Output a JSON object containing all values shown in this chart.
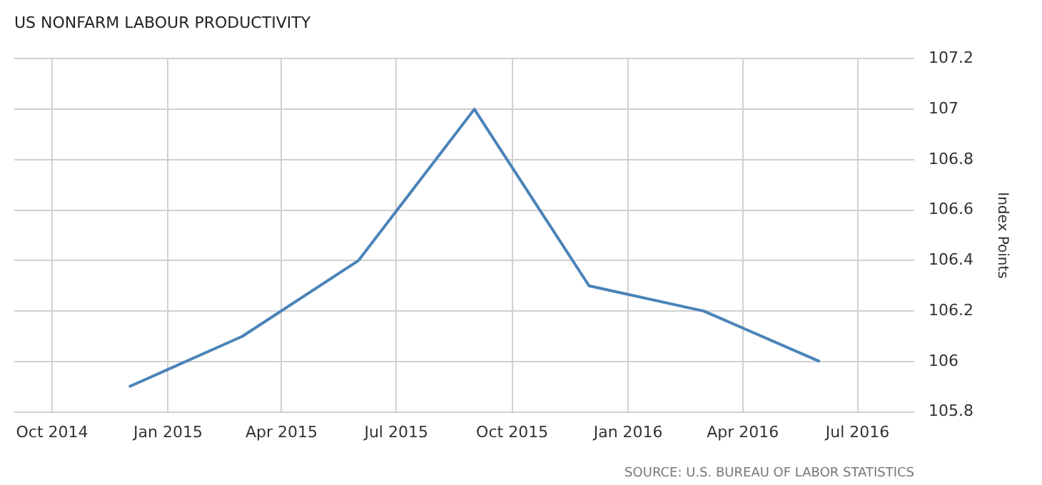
{
  "chart_data": {
    "type": "line",
    "title": "US NONFARM LABOUR PRODUCTIVITY",
    "ylabel": "Index Points",
    "x": [
      "2014-12",
      "2015-03",
      "2015-06",
      "2015-09",
      "2015-12",
      "2016-03",
      "2016-06"
    ],
    "series": [
      {
        "color": "#4a83b9",
        "values": [
          105.9,
          106.1,
          106.4,
          107.0,
          106.3,
          106.2,
          106.0
        ]
      }
    ],
    "xlim": [
      "2014-09-01",
      "2016-08-15"
    ],
    "xticks": [
      {
        "value": "2014-10",
        "label": "Oct 2014"
      },
      {
        "value": "2015-01",
        "label": "Jan 2015"
      },
      {
        "value": "2015-04",
        "label": "Apr 2015"
      },
      {
        "value": "2015-07",
        "label": "Jul 2015"
      },
      {
        "value": "2015-10",
        "label": "Oct 2015"
      },
      {
        "value": "2016-01",
        "label": "Jan 2016"
      },
      {
        "value": "2016-04",
        "label": "Apr 2016"
      },
      {
        "value": "2016-07",
        "label": "Jul 2016"
      }
    ],
    "ylim": [
      105.8,
      107.2
    ],
    "yticks": [
      105.8,
      106,
      106.2,
      106.4,
      106.6,
      106.8,
      107,
      107.2
    ],
    "grid": true,
    "legend": false,
    "marker": "none",
    "line_style": "solid",
    "annotations": [
      "SOURCE: U.S. BUREAU OF LABOR STATISTICS"
    ]
  }
}
